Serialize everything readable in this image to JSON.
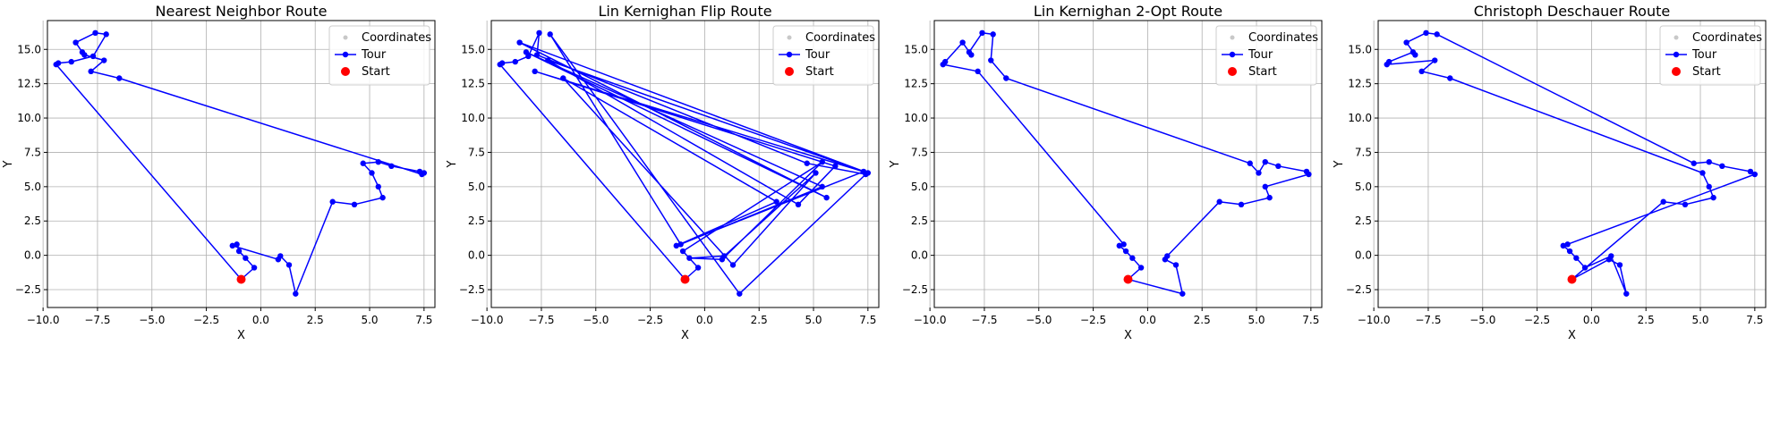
{
  "colors": {
    "tour": "#0000ff",
    "start": "#ff0000",
    "coordinates": "#c8c8c8",
    "grid": "#b0b0b0"
  },
  "chart_data": [
    {
      "type": "line",
      "title": "Nearest Neighbor Route",
      "xlabel": "X",
      "ylabel": "Y",
      "xlim": [
        -9.8,
        8.0
      ],
      "ylim": [
        -3.8,
        17.1
      ],
      "xticks": [
        -10.0,
        -7.5,
        -5.0,
        -2.5,
        0.0,
        2.5,
        5.0,
        7.5
      ],
      "yticks": [
        -2.5,
        0.0,
        2.5,
        5.0,
        7.5,
        10.0,
        12.5,
        15.0
      ],
      "grid": true,
      "legend": {
        "placement": "top-right",
        "entries": [
          "Coordinates",
          "Tour",
          "Start"
        ]
      },
      "start": [
        -0.9,
        -1.75
      ],
      "series": [
        {
          "name": "Tour",
          "x": [
            -0.9,
            -0.3,
            -0.7,
            -1.0,
            -1.1,
            -1.3,
            0.8,
            0.9,
            1.3,
            1.6,
            3.3,
            4.3,
            5.6,
            5.4,
            5.1,
            4.7,
            5.4,
            6.0,
            7.3,
            7.5,
            7.4,
            -6.5,
            -7.8,
            -7.2,
            -8.1,
            -8.2,
            -8.5,
            -7.6,
            -7.1,
            -7.7,
            -8.7,
            -9.3,
            -9.4,
            -0.9
          ],
          "y": [
            -1.75,
            -0.9,
            -0.2,
            0.3,
            0.8,
            0.7,
            -0.3,
            -0.05,
            -0.7,
            -2.8,
            3.9,
            3.7,
            4.2,
            5.0,
            6.0,
            6.7,
            6.8,
            6.5,
            6.1,
            6.0,
            5.9,
            12.9,
            13.4,
            14.2,
            14.6,
            14.8,
            15.5,
            16.2,
            16.1,
            14.5,
            14.1,
            14.0,
            13.9,
            -1.75
          ]
        }
      ]
    },
    {
      "type": "line",
      "title": "Lin Kernighan Flip Route",
      "xlabel": "X",
      "ylabel": "Y",
      "xlim": [
        -9.8,
        8.0
      ],
      "ylim": [
        -3.8,
        17.1
      ],
      "xticks": [
        -10.0,
        -7.5,
        -5.0,
        -2.5,
        0.0,
        2.5,
        5.0,
        7.5
      ],
      "yticks": [
        -2.5,
        0.0,
        2.5,
        5.0,
        7.5,
        10.0,
        12.5,
        15.0
      ],
      "grid": true,
      "legend": {
        "placement": "top-right",
        "entries": [
          "Coordinates",
          "Tour",
          "Start"
        ]
      },
      "start": [
        -0.9,
        -1.75
      ],
      "series": [
        {
          "name": "Tour",
          "x": [
            -0.9,
            -9.4,
            -9.3,
            -8.7,
            -8.1,
            -7.6,
            -7.7,
            4.7,
            7.4,
            1.6,
            -7.1,
            -1.1,
            5.4,
            -8.2,
            5.6,
            -8.5,
            7.5,
            -7.8,
            6.0,
            4.3,
            -7.2,
            7.3,
            -1.3,
            3.3,
            -6.5,
            1.3,
            5.1,
            0.9,
            -0.7,
            0.8,
            5.4,
            -1.0,
            -0.3,
            -0.9
          ],
          "y": [
            -1.75,
            13.9,
            14.0,
            14.1,
            14.5,
            16.2,
            14.6,
            6.7,
            5.9,
            -2.8,
            16.1,
            0.8,
            5.0,
            14.8,
            4.2,
            15.5,
            6.0,
            13.4,
            6.5,
            3.7,
            14.2,
            6.1,
            0.7,
            3.9,
            12.9,
            -0.7,
            6.0,
            -0.05,
            -0.2,
            -0.3,
            6.8,
            0.3,
            -0.9,
            -1.75
          ]
        }
      ]
    },
    {
      "type": "line",
      "title": "Lin Kernighan 2-Opt Route",
      "xlabel": "X",
      "ylabel": "Y",
      "xlim": [
        -9.8,
        8.0
      ],
      "ylim": [
        -3.8,
        17.1
      ],
      "xticks": [
        -10.0,
        -7.5,
        -5.0,
        -2.5,
        0.0,
        2.5,
        5.0,
        7.5
      ],
      "yticks": [
        -2.5,
        0.0,
        2.5,
        5.0,
        7.5,
        10.0,
        12.5,
        15.0
      ],
      "grid": true,
      "legend": {
        "placement": "top-right",
        "entries": [
          "Coordinates",
          "Tour",
          "Start"
        ]
      },
      "start": [
        -0.9,
        -1.75
      ],
      "series": [
        {
          "name": "Tour",
          "x": [
            -0.9,
            1.6,
            1.3,
            0.8,
            0.9,
            3.3,
            4.3,
            5.6,
            5.4,
            7.4,
            7.3,
            6.0,
            5.4,
            5.1,
            4.7,
            -6.5,
            -7.2,
            -7.1,
            -7.6,
            -8.2,
            -8.1,
            -8.5,
            -9.3,
            -9.4,
            -7.8,
            -1.1,
            -1.3,
            -1.0,
            -0.7,
            -0.3,
            -0.9
          ],
          "y": [
            -1.75,
            -2.8,
            -0.7,
            -0.3,
            -0.05,
            3.9,
            3.7,
            4.2,
            5.0,
            5.9,
            6.1,
            6.5,
            6.8,
            6.0,
            6.7,
            12.9,
            14.2,
            16.1,
            16.2,
            14.8,
            14.6,
            15.5,
            14.1,
            13.9,
            13.4,
            0.8,
            0.7,
            0.3,
            -0.2,
            -0.9,
            -1.75
          ]
        }
      ]
    },
    {
      "type": "line",
      "title": "Christoph Deschauer Route",
      "xlabel": "X",
      "ylabel": "Y",
      "xlim": [
        -9.8,
        8.0
      ],
      "ylim": [
        -3.8,
        17.1
      ],
      "xticks": [
        -10.0,
        -7.5,
        -5.0,
        -2.5,
        0.0,
        2.5,
        5.0,
        7.5
      ],
      "yticks": [
        -2.5,
        0.0,
        2.5,
        5.0,
        7.5,
        10.0,
        12.5,
        15.0
      ],
      "grid": true,
      "legend": {
        "placement": "top-right",
        "entries": [
          "Coordinates",
          "Tour",
          "Start"
        ]
      },
      "start": [
        -0.9,
        -1.75
      ],
      "series": [
        {
          "name": "Tour",
          "x": [
            -0.9,
            0.8,
            1.3,
            1.6,
            0.9,
            -0.3,
            -0.7,
            -1.0,
            -1.3,
            -1.1,
            7.5,
            7.3,
            6.0,
            5.4,
            4.7,
            -7.1,
            -7.6,
            -8.5,
            -8.1,
            -8.2,
            -9.3,
            -9.4,
            -7.2,
            -7.8,
            -6.5,
            5.1,
            5.4,
            5.6,
            4.3,
            3.3,
            -0.9
          ],
          "y": [
            -1.75,
            -0.3,
            -0.7,
            -2.8,
            -0.05,
            -0.9,
            -0.2,
            0.3,
            0.7,
            0.8,
            5.9,
            6.1,
            6.5,
            6.8,
            6.7,
            16.1,
            16.2,
            15.5,
            14.6,
            14.8,
            14.1,
            13.9,
            14.2,
            13.4,
            12.9,
            6.0,
            5.0,
            4.2,
            3.7,
            3.9,
            -1.75
          ]
        }
      ]
    }
  ]
}
